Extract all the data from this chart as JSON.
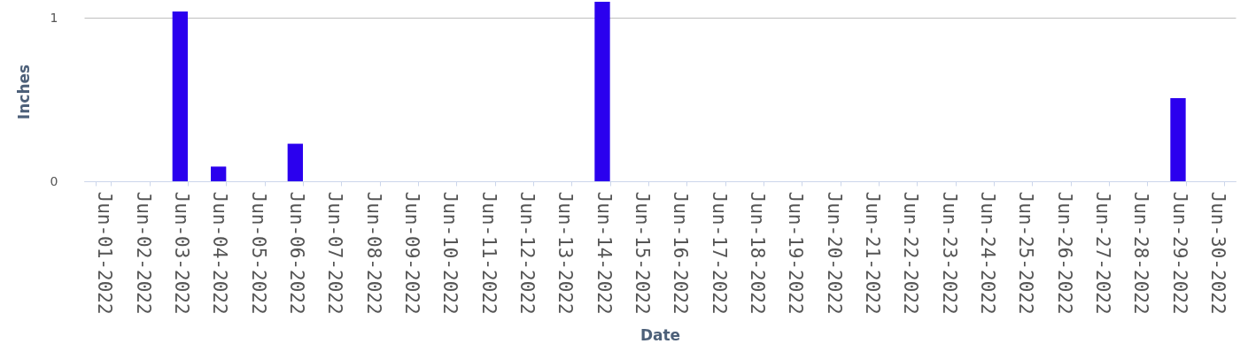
{
  "chart_data": {
    "type": "bar",
    "xlabel": "Date",
    "ylabel": "Inches",
    "categories": [
      "Jun-01-2022",
      "Jun-02-2022",
      "Jun-03-2022",
      "Jun-04-2022",
      "Jun-05-2022",
      "Jun-06-2022",
      "Jun-07-2022",
      "Jun-08-2022",
      "Jun-09-2022",
      "Jun-10-2022",
      "Jun-11-2022",
      "Jun-12-2022",
      "Jun-13-2022",
      "Jun-14-2022",
      "Jun-15-2022",
      "Jun-16-2022",
      "Jun-17-2022",
      "Jun-18-2022",
      "Jun-19-2022",
      "Jun-20-2022",
      "Jun-21-2022",
      "Jun-22-2022",
      "Jun-23-2022",
      "Jun-24-2022",
      "Jun-25-2022",
      "Jun-26-2022",
      "Jun-27-2022",
      "Jun-28-2022",
      "Jun-29-2022",
      "Jun-30-2022"
    ],
    "values": [
      0,
      0,
      1.04,
      0.09,
      0,
      0.23,
      0,
      0,
      0,
      0,
      0,
      0,
      0,
      1.1,
      0,
      0,
      0,
      0,
      0,
      0,
      0,
      0,
      0,
      0,
      0,
      0,
      0,
      0,
      0.51,
      0
    ],
    "color": "#2b00ee",
    "ylim": [
      0,
      1.1
    ],
    "yticks": [
      0,
      1
    ],
    "grid": "y"
  }
}
